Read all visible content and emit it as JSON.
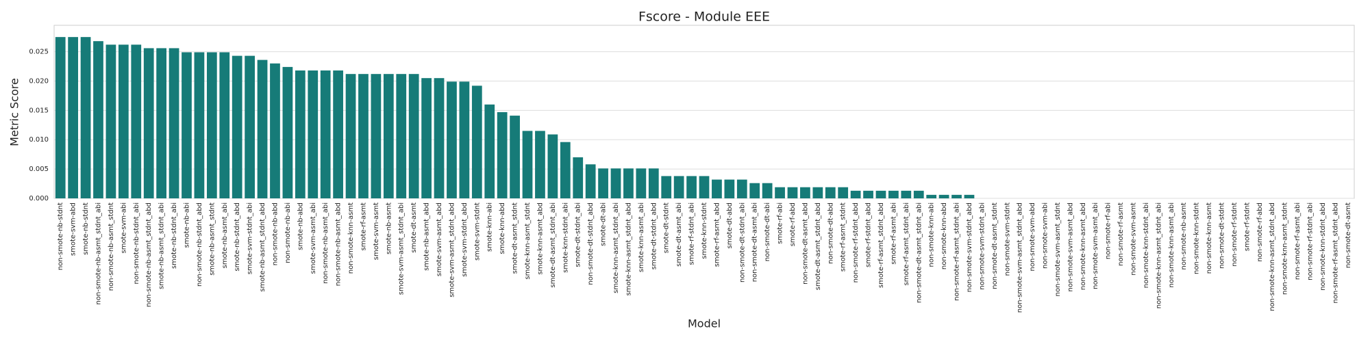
{
  "chart_data": {
    "type": "bar",
    "title": "Fscore - Module EEE",
    "xlabel": "Model",
    "ylabel": "Metric Score",
    "color": "#167b78",
    "grid": true,
    "ylim": [
      0,
      0.0295
    ],
    "yticks": [
      {
        "value": 0,
        "label": "0.000"
      },
      {
        "value": 0.005,
        "label": "0.005"
      },
      {
        "value": 0.01,
        "label": "0.010"
      },
      {
        "value": 0.015,
        "label": "0.015"
      },
      {
        "value": 0.02,
        "label": "0.020"
      },
      {
        "value": 0.025,
        "label": "0.025"
      }
    ],
    "categories": [
      "non-smote-nb-stdnt",
      "smote-svm-abd",
      "smote-nb-stdnt",
      "non-smote-nb-asmt_stdnt_abi",
      "non-smote-nb-asmt_stdnt",
      "smote-svm-abi",
      "non-smote-nb-stdnt_abi",
      "non-smote-nb-asmt_stdnt_abd",
      "smote-nb-asmt_stdnt_abi",
      "smote-nb-stdnt_abi",
      "smote-nb-abi",
      "non-smote-nb-stdnt_abd",
      "smote-nb-asmt_stdnt",
      "smote-nb-asmt_abi",
      "smote-nb-stdnt_abd",
      "smote-svm-stdnt_abi",
      "smote-nb-asmt_stdnt_abd",
      "non-smote-nb-abd",
      "non-smote-nb-abi",
      "smote-nb-abd",
      "smote-svm-asmt_abi",
      "non-smote-nb-asmt_abi",
      "non-smote-nb-asmt_abd",
      "non-smote-knn-asmt",
      "smote-rf-asmt",
      "smote-svm-asmt",
      "smote-nb-asmt",
      "smote-svm-asmt_stdnt_abi",
      "smote-dt-asmt",
      "smote-nb-asmt_abd",
      "smote-svm-asmt_abd",
      "smote-svm-asmt_stdnt_abd",
      "smote-svm-stdnt_abd",
      "smote-svm-stdnt",
      "smote-knn-abi",
      "smote-knn-abd",
      "smote-dt-asmt_stdnt",
      "smote-knn-asmt_stdnt",
      "smote-knn-asmt_abd",
      "smote-dt-asmt_stdnt_abi",
      "smote-knn-stdnt_abi",
      "smote-dt-stdnt_abi",
      "non-smote-dt-stdnt_abd",
      "smote-dt-abi",
      "smote-knn-asmt_stdnt_abi",
      "smote-knn-asmt_stdnt_abd",
      "smote-knn-asmt_abi",
      "smote-dt-stdnt_abd",
      "smote-dt-stdnt",
      "smote-dt-asmt_abi",
      "smote-rf-stdnt_abi",
      "smote-knn-stdnt",
      "smote-rf-asmt_abd",
      "smote-dt-abd",
      "non-smote-dt-stdnt_abi",
      "non-smote-dt-asmt_abi",
      "non-smote-dt-abi",
      "smote-rf-abi",
      "smote-rf-abd",
      "non-smote-dt-asmt_abd",
      "smote-dt-asmt_stdnt_abd",
      "non-smote-dt-abd",
      "smote-rf-asmt_stdnt",
      "non-smote-rf-stdnt_abd",
      "smote-rf-stdnt_abd",
      "smote-rf-asmt_stdnt_abd",
      "smote-rf-asmt_abi",
      "smote-rf-asmt_stdnt_abi",
      "non-smote-dt-asmt_stdnt_abi",
      "non-smote-knn-abi",
      "non-smote-knn-abd",
      "non-smote-rf-asmt_stdnt_abi",
      "non-smote-svm-stdnt_abd",
      "non-smote-svm-stdnt_abi",
      "non-smote-dt-asmt_stdnt",
      "non-smote-svm-stdnt",
      "non-smote-svm-asmt_stdnt_abd",
      "non-smote-svm-abd",
      "non-smote-svm-abi",
      "non-smote-svm-asmt_stdnt",
      "non-smote-svm-asmt_abd",
      "non-smote-knn-asmt_abd",
      "non-smote-svm-asmt_abi",
      "non-smote-rf-abi",
      "non-smote-rf-asmt",
      "non-smote-svm-asmt",
      "non-smote-knn-stdnt_abi",
      "non-smote-knn-asmt_stdnt_abi",
      "non-smote-knn-asmt_abi",
      "non-smote-nb-asmt",
      "non-smote-knn-stdnt",
      "non-smote-knn-asmt",
      "non-smote-dt-stdnt",
      "non-smote-rf-stdnt",
      "smote-rf-stdnt",
      "non-smote-rf-abd",
      "non-smote-knn-asmt_stdnt_abd",
      "non-smote-knn-asmt_stdnt",
      "non-smote-rf-asmt_abi",
      "non-smote-rf-stdnt_abi",
      "non-smote-knn-stdnt_abd",
      "non-smote-rf-asmt_stdnt_abd",
      "non-smote-dt-asmt"
    ],
    "values": [
      0.0275,
      0.0275,
      0.0275,
      0.0268,
      0.0262,
      0.0262,
      0.0262,
      0.0256,
      0.0256,
      0.0256,
      0.0249,
      0.0249,
      0.0249,
      0.0249,
      0.0243,
      0.0243,
      0.0236,
      0.023,
      0.0224,
      0.0218,
      0.0218,
      0.0218,
      0.0218,
      0.0212,
      0.0212,
      0.0212,
      0.0212,
      0.0212,
      0.0212,
      0.0205,
      0.0205,
      0.0199,
      0.0199,
      0.0192,
      0.016,
      0.0147,
      0.0141,
      0.0115,
      0.0115,
      0.0109,
      0.0096,
      0.007,
      0.0058,
      0.0051,
      0.0051,
      0.0051,
      0.0051,
      0.0051,
      0.0038,
      0.0038,
      0.0038,
      0.0038,
      0.0032,
      0.0032,
      0.0032,
      0.0026,
      0.0026,
      0.0019,
      0.0019,
      0.0019,
      0.0019,
      0.0019,
      0.0019,
      0.0013,
      0.0013,
      0.0013,
      0.0013,
      0.0013,
      0.0013,
      0.0006,
      0.0006,
      0.0006,
      0.0006,
      0,
      0,
      0,
      0,
      0,
      0,
      0,
      0,
      0,
      0,
      0,
      0,
      0,
      0,
      0,
      0,
      0,
      0,
      0,
      0,
      0,
      0,
      0,
      0,
      0,
      0,
      0,
      0,
      0,
      0
    ]
  }
}
